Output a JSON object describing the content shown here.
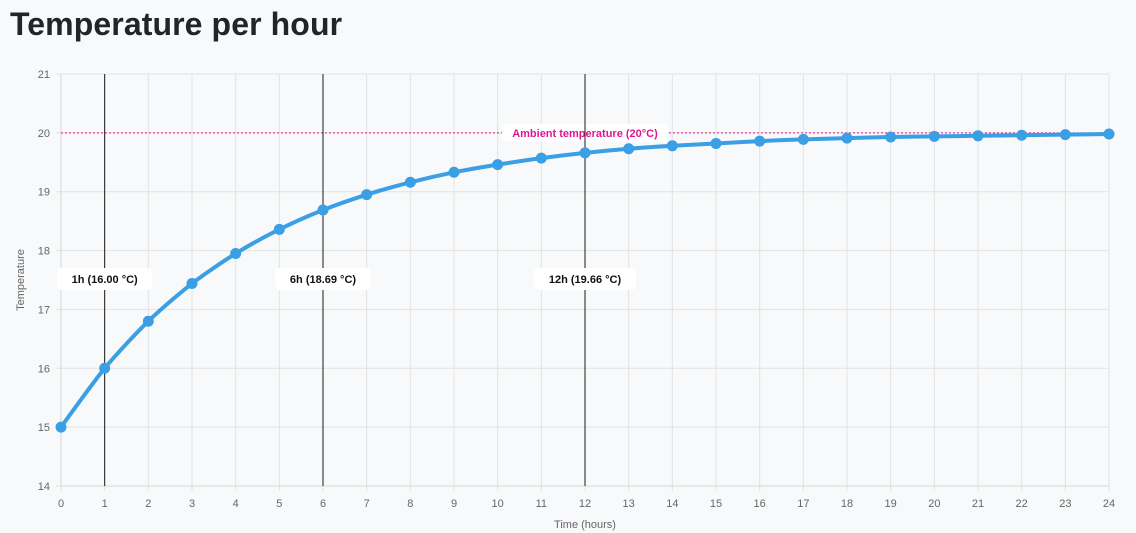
{
  "page": {
    "title": "Temperature per hour"
  },
  "colors": {
    "series": "#3a9fe4",
    "ambient": "#e0168f",
    "annotation_line": "#1a1a1a",
    "grid": "#e3e3e3",
    "background": "#f8f9fa"
  },
  "chart_data": {
    "type": "line",
    "title": "",
    "xlabel": "Time (hours)",
    "ylabel": "Temperature",
    "xlim": [
      0,
      24
    ],
    "ylim": [
      14,
      21
    ],
    "grid": true,
    "legend": "none",
    "x_ticks": [
      "0",
      "1",
      "2",
      "3",
      "4",
      "5",
      "6",
      "7",
      "8",
      "9",
      "10",
      "11",
      "12",
      "13",
      "14",
      "15",
      "16",
      "17",
      "18",
      "19",
      "20",
      "21",
      "22",
      "23",
      "24"
    ],
    "y_ticks": [
      "14",
      "15",
      "16",
      "17",
      "18",
      "19",
      "20",
      "21"
    ],
    "series": [
      {
        "x": [
          0,
          1,
          2,
          3,
          4,
          5,
          6,
          7,
          8,
          9,
          10,
          11,
          12,
          13,
          14,
          15,
          16,
          17,
          18,
          19,
          20,
          21,
          22,
          23,
          24
        ],
        "values": [
          15.0,
          16.0,
          16.8,
          17.44,
          17.95,
          18.36,
          18.69,
          18.95,
          19.16,
          19.33,
          19.46,
          19.57,
          19.66,
          19.73,
          19.78,
          19.82,
          19.86,
          19.89,
          19.91,
          19.93,
          19.94,
          19.95,
          19.96,
          19.97,
          19.98
        ]
      }
    ],
    "annotations": {
      "horizontal_line": {
        "y": 20,
        "label": "Ambient temperature (20°C)"
      },
      "vertical_lines": [
        {
          "x": 1,
          "label": "1h (16.00 °C)"
        },
        {
          "x": 6,
          "label": "6h (18.69 °C)"
        },
        {
          "x": 12,
          "label": "12h (19.66 °C)"
        }
      ]
    }
  }
}
